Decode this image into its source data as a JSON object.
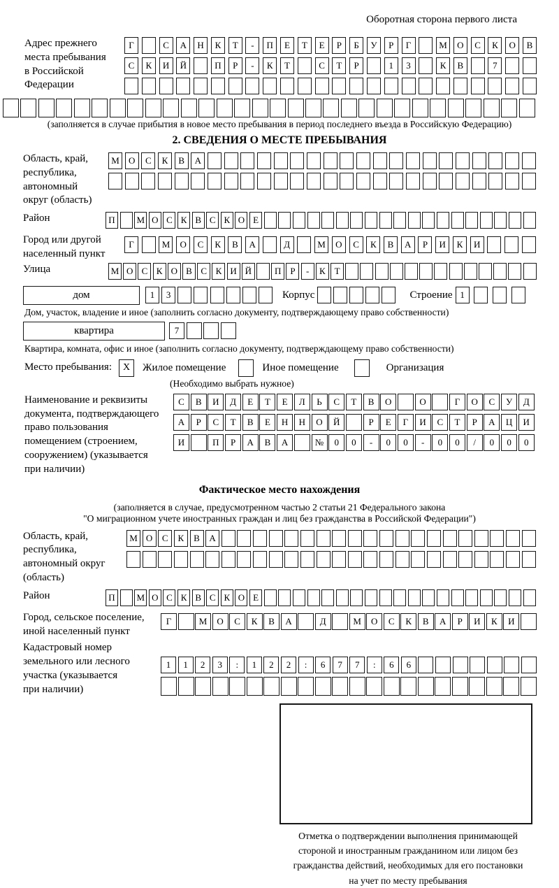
{
  "page": {
    "header_note": "Оборотная сторона первого листа"
  },
  "prev_address": {
    "label": "Адрес прежнего\nместа пребывания\nв Российской\nФедерации",
    "rows": [
      {
        "count": 24,
        "text": "Г САНКТ-ПЕТЕРБУРГ МОСКОВ"
      },
      {
        "count": 24,
        "text": "СКИЙ ПР-КТ СТР 13 КВ 7"
      },
      {
        "count": 24,
        "text": ""
      },
      {
        "count": 30,
        "text": ""
      }
    ],
    "caption": "(заполняется в случае прибытия в новое место пребывания в период последнего въезда в Российскую Федерацию)"
  },
  "section2": {
    "title": "2. СВЕДЕНИЯ О МЕСТЕ ПРЕБЫВАНИЯ",
    "region": {
      "label": "Область, край,\nреспублика,\nавтономный\nокруг (область)",
      "rows": [
        {
          "count": 26,
          "text": "МОСКВА"
        },
        {
          "count": 26,
          "text": ""
        }
      ]
    },
    "district": {
      "label": "Район",
      "row": {
        "count": 30,
        "text": "П МОСКВСКОЕ"
      }
    },
    "city": {
      "label": "Город или другой\nнаселенный пункт",
      "row": {
        "count": 24,
        "text": "Г МОСКВА Д МОСКВАРИКИ"
      }
    },
    "street": {
      "label": "Улица",
      "row": {
        "count": 29,
        "text": "МОСКОВСКИЙ ПР-КТ"
      }
    },
    "house": {
      "box_label": "дом",
      "house_cells": {
        "count": 8,
        "text": "13"
      },
      "korpus_label": "Корпус",
      "korpus_cells": {
        "count": 5,
        "text": ""
      },
      "stroenie_label": "Строение",
      "stroenie_cells": {
        "count": 4,
        "text": "1"
      },
      "caption": "Дом, участок, владение и иное (заполнить согласно документу, подтверждающему право собственности)"
    },
    "apartment": {
      "box_label": "квартира",
      "cells": {
        "count": 4,
        "text": "7"
      },
      "caption": "Квартира, комната, офис и иное (заполнить согласно документу, подтверждающему право собственности)"
    },
    "stay_type": {
      "label": "Место пребывания:",
      "options": [
        {
          "label": "Жилое помещение",
          "checked": "X"
        },
        {
          "label": "Иное помещение",
          "checked": ""
        },
        {
          "label": "Организация",
          "checked": ""
        }
      ],
      "hint": "(Необходимо выбрать нужное)"
    },
    "document": {
      "label": "Наименование и реквизиты\nдокумента, подтверждающего\nправо пользования\nпомещением (строением,\nсооружением) (указывается\nпри наличии)",
      "rows": [
        {
          "count": 21,
          "text": "СВИДЕТЕЛЬСТВО О ГОСУД"
        },
        {
          "count": 21,
          "text": "АРСТВЕННОЙ РЕГИСТРАЦИ"
        },
        {
          "count": 21,
          "text": "И ПРАВА №00-00-00/000"
        }
      ]
    }
  },
  "actual_location": {
    "title": "Фактическое место нахождения",
    "caption": "(заполняется в случае, предусмотренном частью 2 статьи 21 Федерального закона\n\"О миграционном учете иностранных граждан и лиц без гражданства в Российской Федерации\")",
    "region": {
      "label": "Область, край,\nреспублика,\nавтономный округ\n(область)",
      "rows": [
        {
          "count": 26,
          "text": "МОСКВА"
        },
        {
          "count": 26,
          "text": ""
        }
      ]
    },
    "district": {
      "label": "Район",
      "row": {
        "count": 30,
        "text": "П МОСКВСКОЕ"
      }
    },
    "city": {
      "label": "Город, сельское поселение,\nиной населенный пункт",
      "row": {
        "count": 22,
        "text": "Г МОСКВА Д МОСКВАРИКИ"
      }
    },
    "cadastral": {
      "label": "Кадастровый номер\nземельного или лесного\nучастка (указывается\nпри наличии)",
      "rows": [
        {
          "count": 22,
          "text": "1123:122:677:66"
        },
        {
          "count": 22,
          "text": ""
        }
      ]
    },
    "stamp_caption": "Отметка о подтверждении выполнения принимающей\nстороной и иностранным гражданином или лицом без\nгражданства действий, необходимых для его постановки\nна учет по месту пребывания"
  }
}
